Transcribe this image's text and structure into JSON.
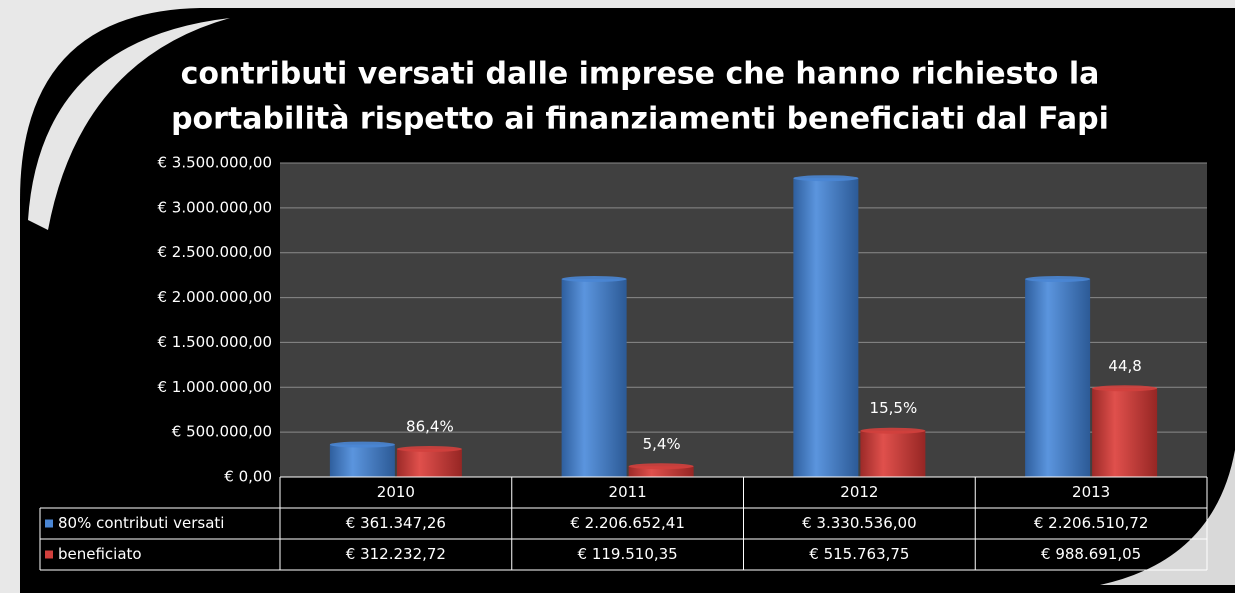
{
  "chart_data": {
    "type": "bar",
    "title": "contributi versati dalle imprese che hanno richiesto la portabilità rispetto ai finanziamenti beneficiati dal Fapi",
    "categories": [
      "2010",
      "2011",
      "2012",
      "2013"
    ],
    "series": [
      {
        "name": "80% contributi versati",
        "color": "#4a86d4",
        "values": [
          361347.26,
          2206652.41,
          3330536.0,
          2206510.72
        ],
        "value_labels": [
          "€ 361.347,26",
          "€ 2.206.652,41",
          "€ 3.330.536,00",
          "€ 2.206.510,72"
        ]
      },
      {
        "name": "beneficiato",
        "color": "#d2403d",
        "values": [
          312232.72,
          119510.35,
          515763.75,
          988691.05
        ],
        "value_labels": [
          "€ 312.232,72",
          "€ 119.510,35",
          "€ 515.763,75",
          "€ 988.691,05"
        ]
      }
    ],
    "annotations": [
      "86,4%",
      "5,4%",
      "15,5%",
      "44,8"
    ],
    "ylim": [
      0,
      3500000
    ],
    "yticks": [
      {
        "value": 0,
        "label": "€ 0,00"
      },
      {
        "value": 500000,
        "label": "€ 500.000,00"
      },
      {
        "value": 1000000,
        "label": "€ 1.000.000,00"
      },
      {
        "value": 1500000,
        "label": "€ 1.500.000,00"
      },
      {
        "value": 2000000,
        "label": "€ 2.000.000,00"
      },
      {
        "value": 2500000,
        "label": "€ 2.500.000,00"
      },
      {
        "value": 3000000,
        "label": "€ 3.000.000,00"
      },
      {
        "value": 3500000,
        "label": "€ 3.500.000,00"
      }
    ],
    "grid": true
  }
}
